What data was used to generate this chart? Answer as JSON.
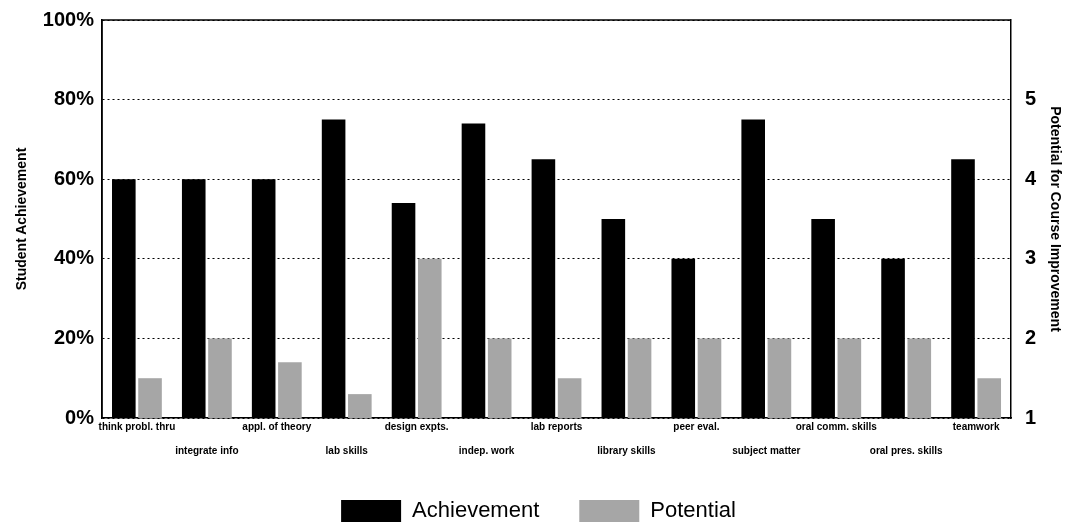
{
  "chart_data": {
    "type": "bar",
    "ylabel": "Student Achievement",
    "y2label": "Potential for Course Improvement",
    "categories": [
      "think probl. thru",
      "integrate info",
      "appl. of theory",
      "lab skills",
      "design expts.",
      "indep. work",
      "lab reports",
      "library skills",
      "peer eval.",
      "subject matter",
      "oral comm. skills",
      "oral pres. skills",
      "teamwork"
    ],
    "series": [
      {
        "name": "Achievement",
        "color": "#000000",
        "values": [
          60,
          60,
          60,
          75,
          54,
          74,
          65,
          50,
          40,
          75,
          50,
          40,
          65
        ]
      },
      {
        "name": "Potential",
        "color": "#a6a6a6",
        "axis": "y2",
        "values": [
          1.5,
          2,
          1.7,
          1.3,
          3,
          2,
          1.5,
          2,
          2,
          2,
          2,
          2,
          1.5
        ]
      }
    ],
    "ylim": [
      0,
      100
    ],
    "yticks": [
      {
        "value": 0,
        "label": "0%"
      },
      {
        "value": 20,
        "label": "20%"
      },
      {
        "value": 40,
        "label": "40%"
      },
      {
        "value": 60,
        "label": "60%"
      },
      {
        "value": 80,
        "label": "80%"
      },
      {
        "value": 100,
        "label": "100%"
      }
    ],
    "y2lim": [
      1,
      6
    ],
    "y2ticks": [
      1,
      2,
      3,
      4,
      5
    ],
    "grid": "y",
    "legend": "bottom"
  }
}
